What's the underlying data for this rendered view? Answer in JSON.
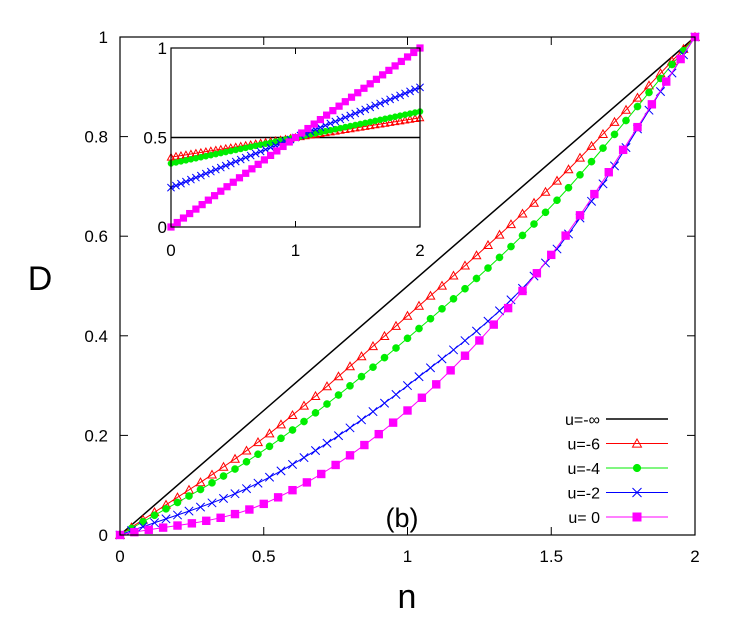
{
  "chart_data": {
    "type": "line",
    "xlabel": "n",
    "ylabel": "D",
    "xlim": [
      0,
      2
    ],
    "ylim": [
      0,
      1
    ],
    "xticks": [
      0,
      0.5,
      1,
      1.5,
      2
    ],
    "xtick_labels": [
      "0",
      "0.5",
      "1",
      "1.5",
      "2"
    ],
    "yticks": [
      0,
      0.2,
      0.4,
      0.6,
      0.8,
      1
    ],
    "ytick_labels": [
      "0",
      "0.2",
      "0.4",
      "0.6",
      "0.8",
      "1"
    ],
    "grid": false,
    "legend_position": "bottom-right",
    "annotation": "(b)",
    "series": [
      {
        "name": "u=-∞",
        "color": "#000000",
        "marker": "none",
        "x": [
          0,
          2
        ],
        "y": [
          0,
          1
        ]
      },
      {
        "name": "u=-6",
        "color": "#ff0000",
        "marker": "triangle-open",
        "x_range": [
          0,
          2
        ],
        "points": 51,
        "y_at": {
          "0": 0,
          "0.5": 0.195,
          "1": 0.44,
          "1.5": 0.7,
          "2": 1
        }
      },
      {
        "name": "u=-4",
        "color": "#00ee00",
        "marker": "circle-filled",
        "x_range": [
          0,
          2
        ],
        "points": 51,
        "y_at": {
          "0": 0,
          "0.5": 0.17,
          "1": 0.395,
          "1.5": 0.66,
          "2": 1
        }
      },
      {
        "name": "u=-2",
        "color": "#0000ff",
        "marker": "cross",
        "x_range": [
          0,
          2
        ],
        "points": 51,
        "y_at": {
          "0": 0,
          "0.5": 0.11,
          "1": 0.3,
          "1.5": 0.56,
          "2": 1
        }
      },
      {
        "name": "u= 0",
        "color": "#ff00ff",
        "marker": "square-filled",
        "x_range": [
          0,
          2
        ],
        "points": 41,
        "y_at": {
          "0": 0,
          "0.5": 0.0625,
          "1": 0.25,
          "1.5": 0.5625,
          "2": 1
        }
      }
    ],
    "inset": {
      "xlim": [
        0,
        2
      ],
      "ylim": [
        0,
        1
      ],
      "xticks": [
        0,
        1,
        2
      ],
      "xtick_labels": [
        "0",
        "1",
        "2"
      ],
      "yticks": [
        0,
        0.5,
        1
      ],
      "ytick_labels": [
        "0",
        "0.5",
        "1"
      ],
      "series": [
        {
          "name": "u=-∞",
          "x": [
            0,
            2
          ],
          "y_at": {
            "0": 0.5,
            "2": 0.5
          }
        },
        {
          "name": "u=-6",
          "x_range": [
            0,
            2
          ],
          "points": 51,
          "y_at": {
            "0": 0.39,
            "1": 0.5,
            "2": 0.61
          }
        },
        {
          "name": "u=-4",
          "x_range": [
            0,
            2
          ],
          "points": 51,
          "y_at": {
            "0": 0.355,
            "1": 0.5,
            "2": 0.645
          }
        },
        {
          "name": "u=-2",
          "x_range": [
            0,
            2
          ],
          "points": 51,
          "y_at": {
            "0": 0.22,
            "1": 0.5,
            "2": 0.78
          }
        },
        {
          "name": "u= 0",
          "x_range": [
            0,
            2
          ],
          "points": 41,
          "y_at": {
            "0": 0,
            "1": 0.5,
            "2": 1
          }
        }
      ]
    }
  }
}
